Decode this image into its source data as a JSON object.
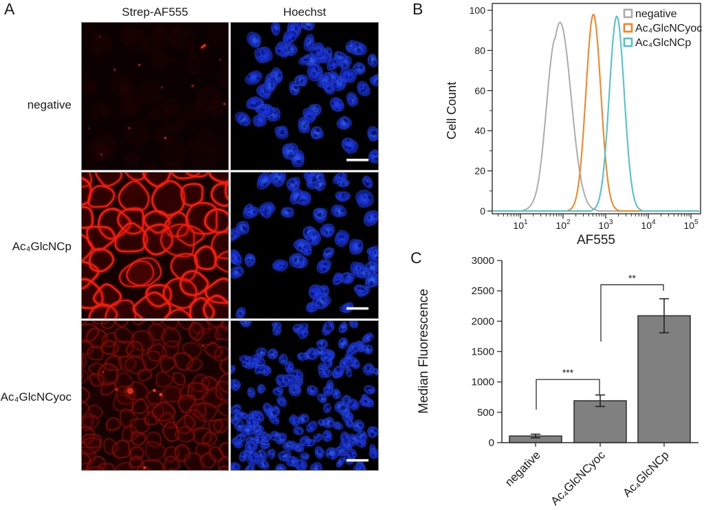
{
  "figure": {
    "panels": {
      "a": {
        "label": "A",
        "column_headers": [
          "Strep-AF555",
          "Hoechst"
        ],
        "row_labels": [
          "negative",
          "Ac₄GlcNCp",
          "Ac₄GlcNCyoc"
        ]
      },
      "b": {
        "label": "B"
      },
      "c": {
        "label": "C"
      }
    }
  },
  "chart_data": [
    {
      "id": "flow-histogram",
      "type": "line",
      "title": "",
      "xlabel": "AF555",
      "ylabel": "Cell Count",
      "x_scale": "log",
      "xticks": [
        10,
        100,
        1000,
        10000,
        100000
      ],
      "ylim": [
        0,
        100
      ],
      "yticks": [
        0,
        20,
        40,
        60,
        80,
        100
      ],
      "grid": false,
      "legend_position": "top-right",
      "series": [
        {
          "name": "negative",
          "color": "#ABABAB",
          "peak_x": 85,
          "peak_y": 94,
          "sigma_decades": 0.26
        },
        {
          "name": "Ac₄GlcNCyoc",
          "color": "#F5821F",
          "peak_x": 515,
          "peak_y": 98,
          "sigma_decades": 0.175
        },
        {
          "name": "Ac₄GlcNCp",
          "color": "#4CC2CB",
          "peak_x": 1820,
          "peak_y": 97,
          "sigma_decades": 0.175
        }
      ]
    },
    {
      "id": "median-fluorescence",
      "type": "bar",
      "title": "",
      "xlabel": "",
      "ylabel": "Median Fluorescence",
      "ylim": [
        0,
        3000
      ],
      "yticks": [
        0,
        500,
        1000,
        1500,
        2000,
        2500,
        3000
      ],
      "categories": [
        "negative",
        "Ac₄GlcNCyoc",
        "Ac₄GlcNCp"
      ],
      "values": [
        110,
        690,
        2090
      ],
      "errors": [
        30,
        95,
        280
      ],
      "bar_color": "#808080",
      "significance": [
        {
          "from": 0,
          "to": 1,
          "label": "***",
          "y_top": 1040,
          "y_left_bottom": 545,
          "y_right_bottom": 780
        },
        {
          "from": 1,
          "to": 2,
          "label": "**",
          "y_top": 2600,
          "y_left_bottom": 1664,
          "y_right_bottom": 2502
        }
      ]
    }
  ]
}
